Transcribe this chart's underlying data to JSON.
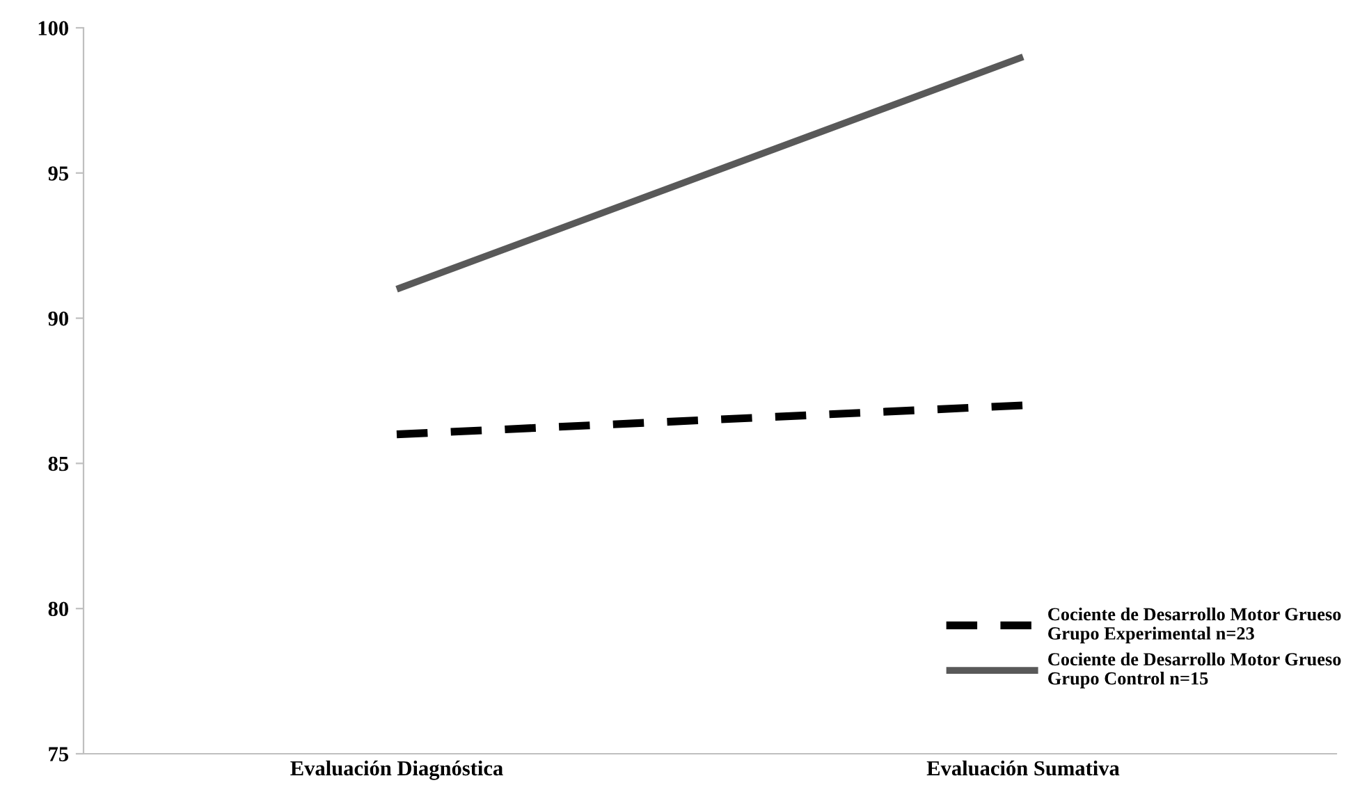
{
  "chart_data": {
    "type": "line",
    "categories": [
      "Evaluación Diagnóstica",
      "Evaluación Sumativa"
    ],
    "series": [
      {
        "name": "Cociente de Desarrollo Motor Grueso\nGrupo Experimental n=23",
        "color": "#000000",
        "values": [
          86,
          87
        ],
        "line_style": "dashed"
      },
      {
        "name": "Cociente de Desarrollo Motor Grueso\nGrupo Control n=15",
        "color": "#595959",
        "values": [
          91,
          99
        ],
        "line_style": "solid"
      }
    ],
    "ylim": [
      75,
      100
    ],
    "yticks": [
      75,
      80,
      85,
      90,
      95,
      100
    ],
    "grid": false,
    "legend": "bottom right",
    "marker": "none"
  }
}
